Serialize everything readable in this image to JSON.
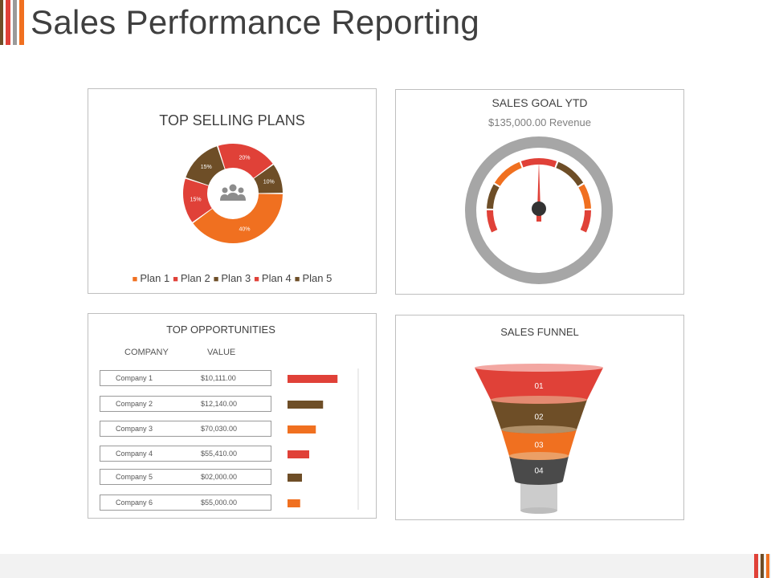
{
  "page": {
    "title": "Sales Performance Reporting",
    "colors": {
      "orange": "#f07020",
      "red": "#e04138",
      "brown": "#6e4e27",
      "gray": "#a6a6a6",
      "dark": "#4a4a4a"
    }
  },
  "top_selling": {
    "title": "TOP SELLING PLANS",
    "center_icon": "users-group-icon",
    "legend": [
      {
        "label": "Plan 1",
        "color": "#f07020"
      },
      {
        "label": "Plan 2",
        "color": "#e04138"
      },
      {
        "label": "Plan 3",
        "color": "#6e4e27"
      },
      {
        "label": "Plan 4",
        "color": "#e04138"
      },
      {
        "label": "Plan 5",
        "color": "#6e4e27"
      }
    ],
    "slices": [
      {
        "label": "40%",
        "value": 40,
        "color": "#f07020"
      },
      {
        "label": "15%",
        "value": 15,
        "color": "#e04138"
      },
      {
        "label": "15%",
        "value": 15,
        "color": "#6e4e27"
      },
      {
        "label": "20%",
        "value": 20,
        "color": "#e04138"
      },
      {
        "label": "10%",
        "value": 10,
        "color": "#6e4e27"
      }
    ]
  },
  "sales_goal": {
    "title": "SALES GOAL YTD",
    "subtitle": "$135,000.00 Revenue"
  },
  "opportunities": {
    "title": "TOP OPPORTUNITIES",
    "company_header": "COMPANY",
    "value_header": "VALUE",
    "rows": [
      {
        "company": "Company 1",
        "value": "$10,111.00",
        "bar": 0.83,
        "color": "#e04138"
      },
      {
        "company": "Company 2",
        "value": "$12,140.00",
        "bar": 0.59,
        "color": "#6e4e27"
      },
      {
        "company": "Company 3",
        "value": "$70,030.00",
        "bar": 0.47,
        "color": "#f07020"
      },
      {
        "company": "Company 4",
        "value": "$55,410.00",
        "bar": 0.36,
        "color": "#e04138"
      },
      {
        "company": "Company 5",
        "value": "$02,000.00",
        "bar": 0.24,
        "color": "#6e4e27"
      },
      {
        "company": "Company 6",
        "value": "$55,000.00",
        "bar": 0.21,
        "color": "#f07020"
      }
    ]
  },
  "funnel": {
    "title": "SALES FUNNEL",
    "stages": [
      {
        "label": "01",
        "color": "#e04138"
      },
      {
        "label": "02",
        "color": "#6e4e27"
      },
      {
        "label": "03",
        "color": "#f07020"
      },
      {
        "label": "04",
        "color": "#4a4a4a"
      }
    ]
  }
}
